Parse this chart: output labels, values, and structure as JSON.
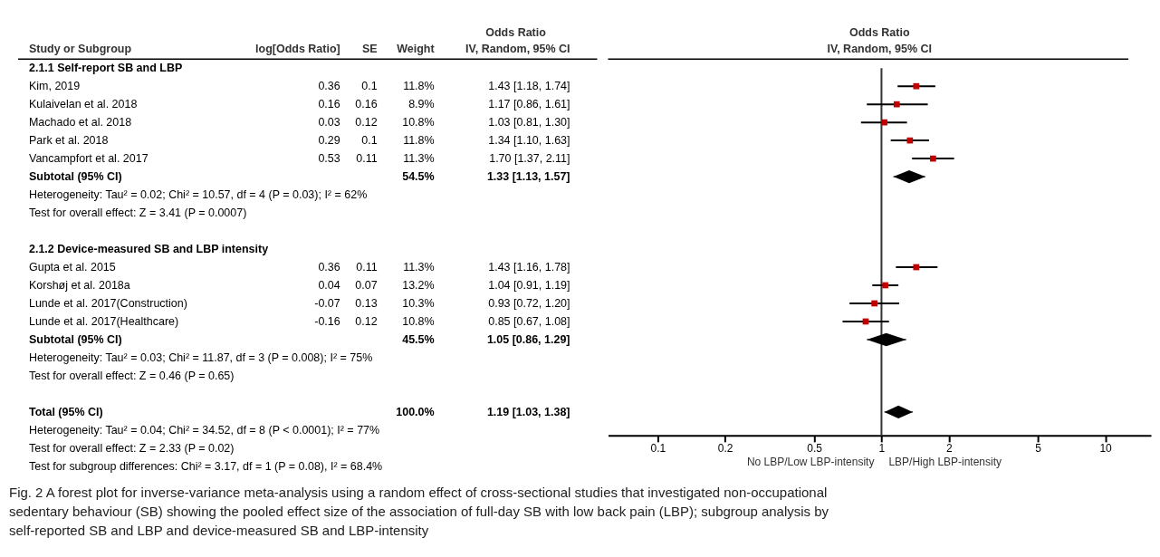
{
  "chart_data": [
    {
      "type": "other",
      "ylabel": "Study or Subgroup",
      "categories": [
        "log[Odds Ratio]",
        "SE",
        "Weight",
        "IV, Random, 95% CI"
      ],
      "cell_labels": [
        [
          null,
          null,
          null,
          null
        ],
        [
          "0.36",
          "0.1",
          "11.8%",
          "1.43 [1.18, 1.74]"
        ],
        [
          "0.16",
          "0.16",
          "8.9%",
          "1.17 [0.86, 1.61]"
        ],
        [
          "0.03",
          "0.12",
          "10.8%",
          "1.03 [0.81, 1.30]"
        ],
        [
          "0.29",
          "0.1",
          "11.8%",
          "1.34 [1.10, 1.63]"
        ],
        [
          "0.53",
          "0.11",
          "11.3%",
          "1.70 [1.37, 2.11]"
        ],
        [
          null,
          null,
          "54.5%",
          "1.33 [1.13, 1.57]"
        ],
        [
          null,
          null,
          null,
          null
        ],
        [
          null,
          null,
          null,
          null
        ],
        [
          null,
          null,
          null,
          null
        ],
        [
          null,
          null,
          null,
          null
        ],
        [
          "0.36",
          "0.11",
          "11.3%",
          "1.43 [1.16, 1.78]"
        ],
        [
          "0.04",
          "0.07",
          "13.2%",
          "1.04 [0.91, 1.19]"
        ],
        [
          "-0.07",
          "0.13",
          "10.3%",
          "0.93 [0.72, 1.20]"
        ],
        [
          "-0.16",
          "0.12",
          "10.8%",
          "0.85 [0.67, 1.08]"
        ],
        [
          null,
          null,
          "45.5%",
          "1.05 [0.86, 1.29]"
        ],
        [
          null,
          null,
          null,
          null
        ],
        [
          null,
          null,
          null,
          null
        ],
        [
          null,
          null,
          null,
          null
        ],
        [
          null,
          null,
          "100.0%",
          "1.19 [1.03, 1.38]"
        ],
        [
          null,
          null,
          null,
          null
        ],
        [
          null,
          null,
          null,
          null
        ],
        [
          null,
          null,
          null,
          null
        ]
      ],
      "annotations": [
        "Odds Ratio",
        "Fig. 2  A forest plot for inverse-variance meta-analysis using a random effect of cross-sectional studies that investigated non-occupational sedentary behaviour (SB) showing the pooled effect size of the association of full-day SB with low back pain (LBP); subgroup analysis by self-reported SB and LBP and device-measured SB and LBP-intensity"
      ]
    },
    {
      "type": "scatter",
      "orientation": "horizontal",
      "title": "Odds Ratio",
      "subtitle": "IV, Random, 95% CI",
      "categories": [
        "2.1.1 Self-report SB and LBP",
        "Kim, 2019",
        "Kulaivelan et al. 2018",
        "Machado et al. 2018",
        "Park et al. 2018",
        "Vancampfort et al. 2017",
        "Subtotal (95% CI)",
        "Heterogeneity: Tau² = 0.02; Chi² = 10.57, df = 4 (P = 0.03); I² = 62%",
        "Test for overall effect: Z = 3.41 (P = 0.0007)",
        null,
        "2.1.2 Device-measured SB and LBP intensity",
        "Gupta et al. 2015",
        "Korshøj et al. 2018a",
        "Lunde et al. 2017(Construction)",
        "Lunde et al. 2017(Healthcare)",
        "Subtotal (95% CI)",
        "Heterogeneity: Tau² = 0.03; Chi² = 11.87, df = 3 (P = 0.008); I² = 75%",
        "Test for overall effect: Z = 0.46 (P = 0.65)",
        null,
        "Total (95% CI)",
        "Heterogeneity: Tau² = 0.04; Chi² = 34.52, df = 8 (P < 0.0001); I² = 77%",
        "Test for overall effect: Z = 2.33 (P = 0.02)",
        "Test for subgroup differences: Chi² = 3.17, df = 1 (P = 0.08), I² = 68.4%"
      ],
      "series": [
        {
          "color": "#c00000",
          "marker": "square",
          "values": [
            null,
            1.43,
            1.17,
            1.03,
            1.34,
            1.7,
            null,
            null,
            null,
            null,
            null,
            1.43,
            1.04,
            0.93,
            0.85,
            null,
            null,
            null,
            null,
            null,
            null,
            null,
            null
          ],
          "errors": [
            null,
            [
              1.18,
              1.74
            ],
            [
              0.86,
              1.61
            ],
            [
              0.81,
              1.3
            ],
            [
              1.1,
              1.63
            ],
            [
              1.37,
              2.11
            ],
            null,
            null,
            null,
            null,
            null,
            [
              1.16,
              1.78
            ],
            [
              0.91,
              1.19
            ],
            [
              0.72,
              1.2
            ],
            [
              0.67,
              1.08
            ],
            null,
            null,
            null,
            null,
            null,
            null,
            null,
            null
          ]
        },
        {
          "color": "#000000",
          "marker": "diamond",
          "values": [
            null,
            null,
            null,
            null,
            null,
            null,
            1.33,
            null,
            null,
            null,
            null,
            null,
            null,
            null,
            null,
            1.05,
            null,
            null,
            null,
            1.19,
            null,
            null,
            null
          ],
          "errors": [
            null,
            null,
            null,
            null,
            null,
            null,
            [
              1.13,
              1.57
            ],
            null,
            null,
            null,
            null,
            null,
            null,
            null,
            null,
            [
              0.86,
              1.29
            ],
            null,
            null,
            null,
            [
              1.03,
              1.38
            ],
            null,
            null,
            null
          ]
        }
      ],
      "log": "x",
      "xlim": [
        0.06,
        16
      ],
      "xticks": [
        0.1,
        0.2,
        0.5,
        1,
        2,
        5,
        10
      ],
      "ref_lines": [
        {
          "axis": "x",
          "value": 1,
          "color": "#333333"
        }
      ],
      "annotations": [
        "No LBP/Low LBP-intensity",
        "LBP/High LBP-intensity"
      ],
      "grid": false,
      "tick_labels": "x"
    }
  ]
}
